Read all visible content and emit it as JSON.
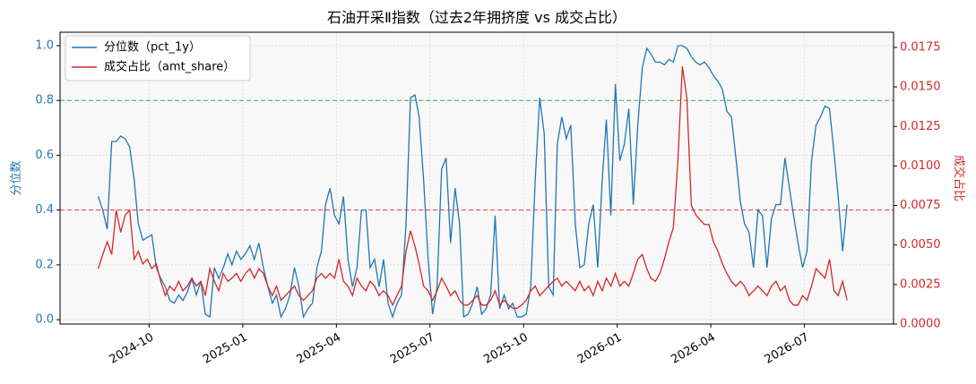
{
  "chart_data": {
    "type": "line",
    "title": "石油开采Ⅱ指数（过去2年拥挤度 vs 成交占比）",
    "y_label": "分位数",
    "y2_label": "成交占比",
    "grid": true,
    "legend": "upper left",
    "x": [
      2024.614,
      2024.626,
      2024.638,
      2024.65,
      2024.662,
      2024.674,
      2024.686,
      2024.698,
      2024.71,
      2024.721,
      2024.733,
      2024.745,
      2024.757,
      2024.769,
      2024.781,
      2024.793,
      2024.805,
      2024.817,
      2024.829,
      2024.84,
      2024.852,
      2024.864,
      2024.876,
      2024.888,
      2024.9,
      2024.912,
      2024.924,
      2024.936,
      2024.948,
      2024.96,
      2024.971,
      2024.983,
      2024.995,
      2025.007,
      2025.019,
      2025.031,
      2025.043,
      2025.055,
      2025.067,
      2025.079,
      2025.09,
      2025.102,
      2025.114,
      2025.126,
      2025.138,
      2025.15,
      2025.162,
      2025.174,
      2025.186,
      2025.198,
      2025.21,
      2025.221,
      2025.233,
      2025.245,
      2025.257,
      2025.269,
      2025.281,
      2025.293,
      2025.305,
      2025.317,
      2025.329,
      2025.34,
      2025.352,
      2025.364,
      2025.376,
      2025.388,
      2025.4,
      2025.412,
      2025.424,
      2025.436,
      2025.448,
      2025.46,
      2025.471,
      2025.483,
      2025.495,
      2025.507,
      2025.519,
      2025.531,
      2025.543,
      2025.555,
      2025.567,
      2025.579,
      2025.59,
      2025.602,
      2025.614,
      2025.626,
      2025.638,
      2025.65,
      2025.662,
      2025.674,
      2025.686,
      2025.698,
      2025.71,
      2025.721,
      2025.733,
      2025.745,
      2025.757,
      2025.769,
      2025.781,
      2025.793,
      2025.805,
      2025.817,
      2025.829,
      2025.84,
      2025.852,
      2025.864,
      2025.876,
      2025.888,
      2025.9,
      2025.912,
      2025.924,
      2025.936,
      2025.948,
      2025.96,
      2025.971,
      2025.983,
      2025.995,
      2026.007,
      2026.019,
      2026.031,
      2026.043,
      2026.055,
      2026.067,
      2026.079,
      2026.09,
      2026.102,
      2026.114,
      2026.126,
      2026.138,
      2026.15,
      2026.162,
      2026.174,
      2026.186,
      2026.198,
      2026.21,
      2026.221,
      2026.233,
      2026.245,
      2026.257,
      2026.269,
      2026.281,
      2026.293,
      2026.305,
      2026.317,
      2026.329,
      2026.34,
      2026.352,
      2026.364,
      2026.376,
      2026.388,
      2026.4,
      2026.412,
      2026.424,
      2026.436,
      2026.448,
      2026.46,
      2026.471,
      2026.483,
      2026.495,
      2026.507,
      2026.519,
      2026.531,
      2026.543,
      2026.555,
      2026.567,
      2026.579,
      2026.59,
      2026.602,
      2026.614
    ],
    "xlim": [
      2024.512,
      2026.738
    ],
    "xticks": [
      {
        "value": 2024.75,
        "label": "2024-10"
      },
      {
        "value": 2025.0,
        "label": "2025-01"
      },
      {
        "value": 2025.25,
        "label": "2025-04"
      },
      {
        "value": 2025.5,
        "label": "2025-07"
      },
      {
        "value": 2025.75,
        "label": "2025-10"
      },
      {
        "value": 2026.0,
        "label": "2026-01"
      },
      {
        "value": 2026.25,
        "label": "2026-04"
      },
      {
        "value": 2026.5,
        "label": "2026-07"
      }
    ],
    "ylim": [
      -0.016,
      1.049
    ],
    "yticks": [
      {
        "value": 0,
        "label": "0.0"
      },
      0.2,
      0.4,
      0.6,
      0.8,
      {
        "value": 1,
        "label": "1.0"
      }
    ],
    "y2lim": [
      0,
      0.01846
    ],
    "y2ticks": [
      {
        "value": 0,
        "label": "0.0000"
      },
      {
        "value": 0.0025,
        "label": "0.0025"
      },
      {
        "value": 0.005,
        "label": "0.0050"
      },
      {
        "value": 0.0075,
        "label": "0.0075"
      },
      {
        "value": 0.01,
        "label": "0.0100"
      },
      {
        "value": 0.0125,
        "label": "0.0125"
      },
      {
        "value": 0.015,
        "label": "0.0150"
      },
      {
        "value": 0.0175,
        "label": "0.0175"
      }
    ],
    "y_color": "#1f77b4",
    "y2_color": "#d62728",
    "hlines": [
      {
        "value": 0.8,
        "color": "#2ca02c"
      },
      {
        "value": 0.4,
        "color": "#d62728"
      }
    ],
    "series": [
      {
        "name": "分位数（pct_1y）",
        "color": "#1f77b4",
        "values": [
          0.45,
          0.4,
          0.33,
          0.65,
          0.65,
          0.67,
          0.66,
          0.63,
          0.51,
          0.35,
          0.29,
          0.3,
          0.31,
          0.19,
          0.15,
          0.12,
          0.07,
          0.06,
          0.09,
          0.07,
          0.1,
          0.15,
          0.09,
          0.14,
          0.02,
          0.01,
          0.19,
          0.15,
          0.19,
          0.24,
          0.2,
          0.25,
          0.22,
          0.24,
          0.27,
          0.22,
          0.28,
          0.19,
          0.12,
          0.06,
          0.09,
          0.01,
          0.04,
          0.09,
          0.19,
          0.12,
          0.01,
          0.04,
          0.06,
          0.19,
          0.25,
          0.42,
          0.48,
          0.38,
          0.35,
          0.45,
          0.22,
          0.12,
          0.19,
          0.4,
          0.4,
          0.19,
          0.22,
          0.12,
          0.22,
          0.06,
          0.01,
          0.06,
          0.09,
          0.35,
          0.81,
          0.82,
          0.74,
          0.51,
          0.22,
          0.02,
          0.12,
          0.55,
          0.59,
          0.28,
          0.48,
          0.35,
          0.01,
          0.02,
          0.06,
          0.12,
          0.02,
          0.04,
          0.09,
          0.38,
          0.04,
          0.09,
          0.04,
          0.06,
          0.01,
          0.01,
          0.02,
          0.12,
          0.51,
          0.81,
          0.68,
          0.12,
          0.09,
          0.64,
          0.74,
          0.66,
          0.71,
          0.35,
          0.19,
          0.2,
          0.35,
          0.42,
          0.19,
          0.51,
          0.73,
          0.38,
          0.86,
          0.58,
          0.64,
          0.77,
          0.42,
          0.71,
          0.92,
          0.99,
          0.97,
          0.94,
          0.94,
          0.93,
          0.95,
          0.94,
          1.0,
          1.0,
          0.99,
          0.96,
          0.94,
          0.93,
          0.94,
          0.92,
          0.89,
          0.87,
          0.84,
          0.76,
          0.74,
          0.59,
          0.43,
          0.35,
          0.32,
          0.19,
          0.4,
          0.38,
          0.19,
          0.37,
          0.42,
          0.42,
          0.59,
          0.48,
          0.38,
          0.28,
          0.19,
          0.25,
          0.58,
          0.71,
          0.74,
          0.78,
          0.77,
          0.61,
          0.45,
          0.25,
          0.42
        ]
      },
      {
        "name": "成交占比（amt_share）",
        "color": "#d62728",
        "axis": "y2",
        "values": [
          0.0035,
          0.0044,
          0.0052,
          0.0044,
          0.0072,
          0.0058,
          0.0069,
          0.0072,
          0.0041,
          0.0046,
          0.0038,
          0.0041,
          0.0035,
          0.0038,
          0.0027,
          0.0018,
          0.0024,
          0.0021,
          0.0027,
          0.0021,
          0.0024,
          0.0029,
          0.0024,
          0.0027,
          0.0018,
          0.0035,
          0.0027,
          0.0021,
          0.0032,
          0.0027,
          0.0029,
          0.0032,
          0.0027,
          0.0032,
          0.0035,
          0.0029,
          0.0035,
          0.0032,
          0.0024,
          0.0018,
          0.0024,
          0.0015,
          0.0018,
          0.0021,
          0.0024,
          0.0018,
          0.0015,
          0.0018,
          0.0021,
          0.0029,
          0.0032,
          0.0029,
          0.0032,
          0.0029,
          0.0041,
          0.0027,
          0.0024,
          0.0018,
          0.0029,
          0.0024,
          0.0021,
          0.0027,
          0.0024,
          0.0018,
          0.0021,
          0.0018,
          0.0012,
          0.0018,
          0.0024,
          0.0046,
          0.0059,
          0.0049,
          0.0038,
          0.0024,
          0.0021,
          0.0015,
          0.0021,
          0.0029,
          0.0024,
          0.0018,
          0.0021,
          0.0015,
          0.0012,
          0.0012,
          0.0015,
          0.0018,
          0.0012,
          0.0012,
          0.0015,
          0.0021,
          0.0012,
          0.0015,
          0.0012,
          0.001,
          0.001,
          0.0012,
          0.0015,
          0.0021,
          0.0024,
          0.0018,
          0.0021,
          0.0024,
          0.0027,
          0.0029,
          0.0024,
          0.0027,
          0.0024,
          0.0021,
          0.0027,
          0.0021,
          0.0024,
          0.0018,
          0.0027,
          0.0021,
          0.0029,
          0.0024,
          0.0032,
          0.0024,
          0.0027,
          0.0024,
          0.0032,
          0.0041,
          0.0044,
          0.0035,
          0.0029,
          0.0027,
          0.0032,
          0.0041,
          0.0052,
          0.0061,
          0.0103,
          0.0163,
          0.0143,
          0.0075,
          0.0069,
          0.0066,
          0.0063,
          0.0063,
          0.0052,
          0.0046,
          0.0038,
          0.0032,
          0.0027,
          0.0024,
          0.0027,
          0.0024,
          0.0018,
          0.0021,
          0.0024,
          0.0021,
          0.0018,
          0.0024,
          0.0027,
          0.0021,
          0.0024,
          0.0015,
          0.0012,
          0.0012,
          0.0018,
          0.0015,
          0.0024,
          0.0035,
          0.0032,
          0.0029,
          0.0041,
          0.0021,
          0.0018,
          0.0027,
          0.0015
        ]
      }
    ]
  }
}
